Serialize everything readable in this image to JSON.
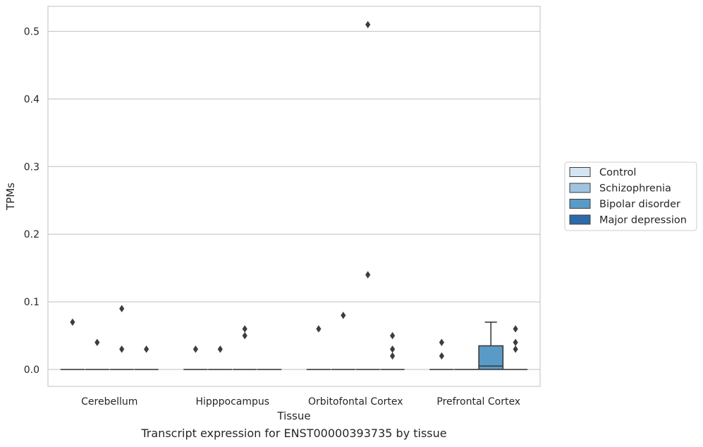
{
  "caption": "Transcript expression for ENST00000393735 by tissue",
  "chart_data": {
    "type": "box",
    "xlabel": "Tissue",
    "ylabel": "TPMs",
    "ylim": [
      -0.025,
      0.537
    ],
    "yticks": [
      0.0,
      0.1,
      0.2,
      0.3,
      0.4,
      0.5
    ],
    "ytick_labels": [
      "0.0",
      "0.1",
      "0.2",
      "0.3",
      "0.4",
      "0.5"
    ],
    "grid": "horizontal",
    "legend_position": "right",
    "categories": [
      "Cerebellum",
      "Hipppocampus",
      "Orbitofontal Cortex",
      "Prefrontal Cortex"
    ],
    "series": [
      {
        "name": "Control",
        "color": "#d4e4f2",
        "boxes": [
          {
            "q1": 0,
            "median": 0,
            "q3": 0,
            "whisker_low": 0,
            "whisker_high": 0,
            "outliers": [
              0.07
            ]
          },
          {
            "q1": 0,
            "median": 0,
            "q3": 0,
            "whisker_low": 0,
            "whisker_high": 0,
            "outliers": [
              0.03
            ]
          },
          {
            "q1": 0,
            "median": 0,
            "q3": 0,
            "whisker_low": 0,
            "whisker_high": 0,
            "outliers": [
              0.06
            ]
          },
          {
            "q1": 0,
            "median": 0,
            "q3": 0,
            "whisker_low": 0,
            "whisker_high": 0,
            "outliers": [
              0.04,
              0.02
            ]
          }
        ]
      },
      {
        "name": "Schizophrenia",
        "color": "#9fc4df",
        "boxes": [
          {
            "q1": 0,
            "median": 0,
            "q3": 0,
            "whisker_low": 0,
            "whisker_high": 0,
            "outliers": [
              0.04
            ]
          },
          {
            "q1": 0,
            "median": 0,
            "q3": 0,
            "whisker_low": 0,
            "whisker_high": 0,
            "outliers": [
              0.03
            ]
          },
          {
            "q1": 0,
            "median": 0,
            "q3": 0,
            "whisker_low": 0,
            "whisker_high": 0,
            "outliers": [
              0.08
            ]
          },
          {
            "q1": 0,
            "median": 0,
            "q3": 0,
            "whisker_low": 0,
            "whisker_high": 0,
            "outliers": []
          }
        ]
      },
      {
        "name": "Bipolar disorder",
        "color": "#5a9ac6",
        "boxes": [
          {
            "q1": 0,
            "median": 0,
            "q3": 0,
            "whisker_low": 0,
            "whisker_high": 0,
            "outliers": [
              0.09,
              0.03
            ]
          },
          {
            "q1": 0,
            "median": 0,
            "q3": 0,
            "whisker_low": 0,
            "whisker_high": 0,
            "outliers": [
              0.06,
              0.05
            ]
          },
          {
            "q1": 0,
            "median": 0,
            "q3": 0,
            "whisker_low": 0,
            "whisker_high": 0,
            "outliers": [
              0.51,
              0.14
            ]
          },
          {
            "q1": 0,
            "median": 0.005,
            "q3": 0.035,
            "whisker_low": 0,
            "whisker_high": 0.07,
            "outliers": []
          }
        ]
      },
      {
        "name": "Major depression",
        "color": "#2d6aa8",
        "boxes": [
          {
            "q1": 0,
            "median": 0,
            "q3": 0,
            "whisker_low": 0,
            "whisker_high": 0,
            "outliers": [
              0.03
            ]
          },
          {
            "q1": 0,
            "median": 0,
            "q3": 0,
            "whisker_low": 0,
            "whisker_high": 0,
            "outliers": []
          },
          {
            "q1": 0,
            "median": 0,
            "q3": 0,
            "whisker_low": 0,
            "whisker_high": 0,
            "outliers": [
              0.05,
              0.03,
              0.02
            ]
          },
          {
            "q1": 0,
            "median": 0,
            "q3": 0,
            "whisker_low": 0,
            "whisker_high": 0,
            "outliers": [
              0.06,
              0.04,
              0.03
            ]
          }
        ]
      }
    ]
  }
}
